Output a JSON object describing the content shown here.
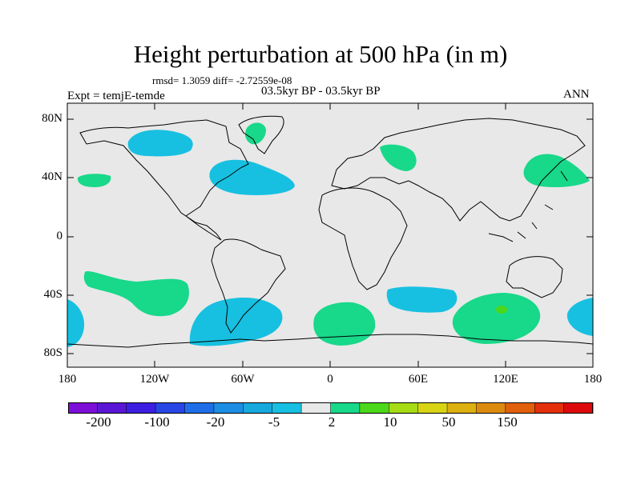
{
  "title": "Height perturbation at 500 hPa (in m)",
  "stats_line": "rmsd= 1.3059 diff= -2.72559e-08",
  "experiment": "Expt = temjE-temde",
  "period": "03.5kyr BP - 03.5kyr BP",
  "season": "ANN",
  "map": {
    "projection": "cylindrical-equidistant",
    "lon_range": [
      -180,
      180
    ],
    "lat_range": [
      -90,
      90
    ],
    "y_tick_labels": [
      "80N",
      "40N",
      "0",
      "40S",
      "80S"
    ],
    "x_tick_labels": [
      "180",
      "120W",
      "60W",
      "0",
      "60E",
      "120E",
      "180"
    ]
  },
  "colorbar": {
    "colors": [
      "#7d0fd8",
      "#5a16d6",
      "#3c1fe0",
      "#2846e6",
      "#1f6ee8",
      "#1b8ee4",
      "#17a9de",
      "#17c0e0",
      "#e8e8e8",
      "#18d88a",
      "#4cd81a",
      "#a5dc14",
      "#d8d414",
      "#dcb010",
      "#dc8a0e",
      "#e0600c",
      "#e4300a",
      "#dc0a0a"
    ],
    "labels": [
      "-200",
      "-100",
      "-20",
      "-5",
      "2",
      "10",
      "50",
      "150"
    ]
  },
  "fields": [
    {
      "name": "negative-north-atlantic",
      "level": "-5",
      "color": "#17c0e0"
    },
    {
      "name": "negative-canada",
      "level": "-5",
      "color": "#17c0e0"
    },
    {
      "name": "negative-south-america",
      "level": "-5",
      "color": "#17c0e0"
    },
    {
      "name": "negative-south-indian",
      "level": "-5",
      "color": "#17c0e0"
    },
    {
      "name": "negative-south-pacific-west",
      "level": "-5",
      "color": "#17c0e0"
    },
    {
      "name": "negative-south-pacific-east",
      "level": "-5",
      "color": "#17c0e0"
    },
    {
      "name": "positive-greenland",
      "level": "2",
      "color": "#18d88a"
    },
    {
      "name": "positive-north-pacific",
      "level": "2",
      "color": "#18d88a"
    },
    {
      "name": "positive-europe",
      "level": "2",
      "color": "#18d88a"
    },
    {
      "name": "positive-japan",
      "level": "2",
      "color": "#18d88a"
    },
    {
      "name": "positive-south-pacific",
      "level": "2",
      "color": "#18d88a"
    },
    {
      "name": "positive-south-atlantic",
      "level": "2",
      "color": "#18d88a"
    },
    {
      "name": "positive-south-indian-ocean",
      "level": "2",
      "color": "#18d88a"
    },
    {
      "name": "positive-south-indian-core",
      "level": "10",
      "color": "#4cd81a"
    }
  ]
}
